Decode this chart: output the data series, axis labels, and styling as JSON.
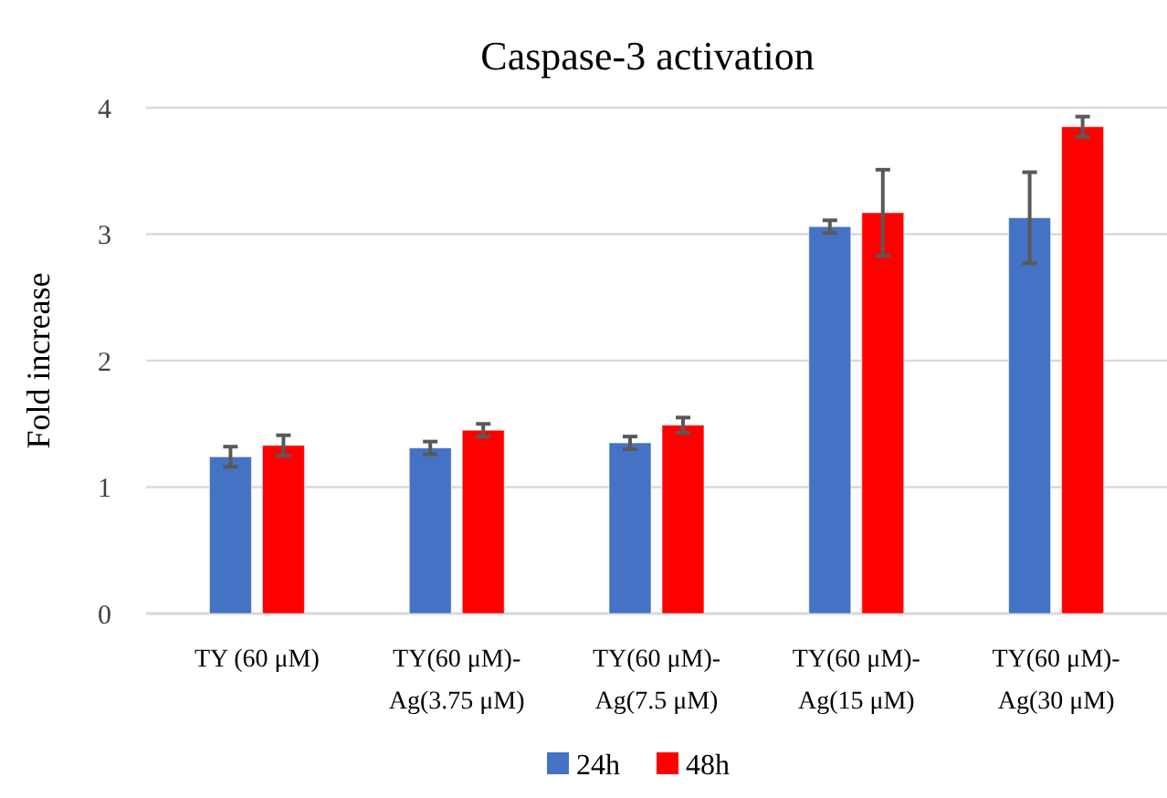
{
  "chart_data": {
    "type": "bar",
    "title": "Caspase-3 activation",
    "ylabel": "Fold increase",
    "categories": [
      "TY (60 μM)",
      "TY(60 μM)-\nAg(3.75 μM)",
      "TY(60 μM)-\nAg(7.5 μM)",
      "TY(60 μM)-\nAg(15 μM)",
      "TY(60 μM)-\nAg(30 μM)"
    ],
    "series": [
      {
        "name": "24h",
        "color": "#4472c4",
        "values": [
          1.24,
          1.31,
          1.35,
          3.06,
          3.13
        ],
        "errors": [
          0.08,
          0.05,
          0.05,
          0.05,
          0.36
        ]
      },
      {
        "name": "48h",
        "color": "#ff0000",
        "values": [
          1.33,
          1.45,
          1.49,
          3.17,
          3.85
        ],
        "errors": [
          0.08,
          0.05,
          0.06,
          0.34,
          0.08
        ]
      }
    ],
    "ylim": [
      0,
      4
    ],
    "yticks": [
      0,
      1,
      2,
      3,
      4
    ],
    "grid": "y",
    "legend": "bottom"
  }
}
